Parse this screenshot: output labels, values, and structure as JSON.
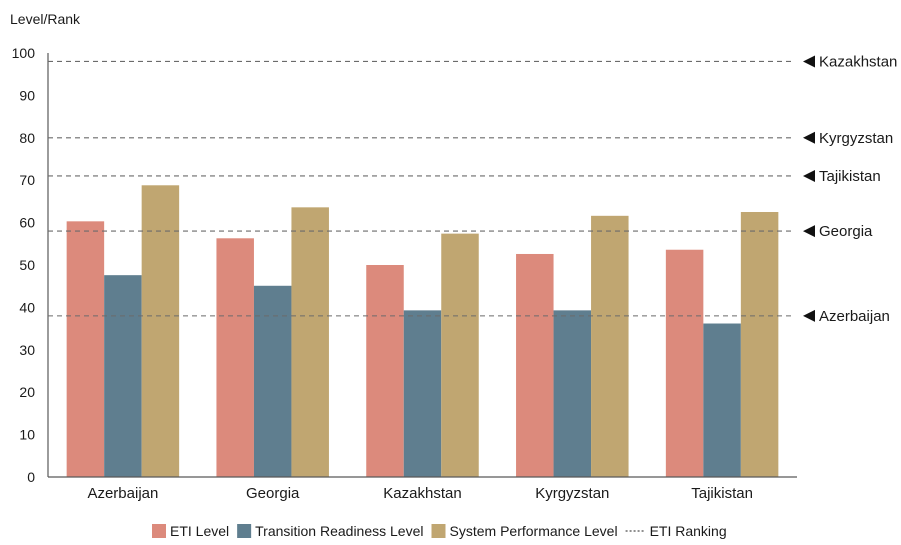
{
  "chart_data": {
    "type": "bar",
    "ylabel": "Level/Rank",
    "ylim": [
      0,
      100
    ],
    "yticks": [
      0,
      10,
      20,
      30,
      40,
      50,
      60,
      70,
      80,
      90,
      100
    ],
    "categories": [
      "Azerbaijan",
      "Georgia",
      "Kazakhstan",
      "Kyrgyzstan",
      "Tajikistan"
    ],
    "series": [
      {
        "name": "ETI Level",
        "color": "#DC8A7C",
        "values": [
          60.3,
          56.3,
          50.0,
          52.6,
          53.6
        ]
      },
      {
        "name": "Transition Readiness Level",
        "color": "#5F7E8F",
        "values": [
          47.6,
          45.1,
          39.3,
          39.3,
          36.2
        ]
      },
      {
        "name": "System Performance Level",
        "color": "#C0A671",
        "values": [
          68.8,
          63.6,
          57.4,
          61.6,
          62.5
        ]
      }
    ],
    "rankings": {
      "name": "ETI Ranking",
      "lines": [
        {
          "label": "Kazakhstan",
          "value": 98
        },
        {
          "label": "Kyrgyzstan",
          "value": 80
        },
        {
          "label": "Tajikistan",
          "value": 71
        },
        {
          "label": "Georgia",
          "value": 58
        },
        {
          "label": "Azerbaijan",
          "value": 38
        }
      ]
    },
    "legend_position": "bottom"
  }
}
